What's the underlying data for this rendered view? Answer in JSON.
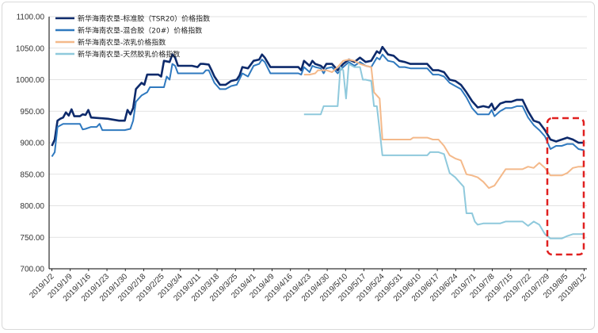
{
  "chart_data": {
    "type": "line",
    "title": "",
    "xlabel": "",
    "ylabel": "",
    "ylim": [
      700,
      1100
    ],
    "yticks": [
      "700.00",
      "750.00",
      "800.00",
      "850.00",
      "900.00",
      "950.00",
      "1000.00",
      "1050.00",
      "1100.00"
    ],
    "xticks": [
      "2019/1/2",
      "2019/1/9",
      "2019/1/16",
      "2019/1/23",
      "2019/1/30",
      "2019/2/18",
      "2019/2/25",
      "2019/3/4",
      "2019/3/11",
      "2019/3/18",
      "2019/3/25",
      "2019/4/1",
      "2019/4/9",
      "2019/4/16",
      "2019/4/23",
      "2019/4/30",
      "2019/5/10",
      "2019/5/17",
      "2019/5/24",
      "2019/5/31",
      "2019/6/10",
      "2019/6/17",
      "2019/6/24",
      "2019/7/1",
      "2019/7/8",
      "2019/7/15",
      "2019/7/22",
      "2019/7/29",
      "2019/8/5",
      "2019/8/12"
    ],
    "grid": "horizontal",
    "legend_position": "top-left",
    "annotation": "red dashed box around last trading days",
    "series": [
      {
        "name": "新华海南农垦-标准胶（TSR20）价格指数",
        "color": "#0d2a6b",
        "points": [
          [
            0,
            895
          ],
          [
            0.5,
            905
          ],
          [
            1,
            935
          ],
          [
            1.5,
            938
          ],
          [
            2,
            940
          ],
          [
            2.5,
            948
          ],
          [
            3,
            943
          ],
          [
            3.5,
            953
          ],
          [
            4,
            942
          ],
          [
            5,
            942
          ],
          [
            5.5,
            945
          ],
          [
            6,
            944
          ],
          [
            6.5,
            952
          ],
          [
            7,
            940
          ],
          [
            10,
            938
          ],
          [
            12,
            935
          ],
          [
            13,
            935
          ],
          [
            13.5,
            952
          ],
          [
            14,
            945
          ],
          [
            14.5,
            955
          ],
          [
            15,
            985
          ],
          [
            16,
            995
          ],
          [
            16.5,
            992
          ],
          [
            17,
            1008
          ],
          [
            19,
            1008
          ],
          [
            19.5,
            1005
          ],
          [
            20,
            1030
          ],
          [
            21,
            1028
          ],
          [
            21.5,
            1040
          ],
          [
            22,
            1035
          ],
          [
            22.5,
            1022
          ],
          [
            25,
            1022
          ],
          [
            26,
            1020
          ],
          [
            26.5,
            1025
          ],
          [
            27,
            1025
          ],
          [
            28,
            1024
          ],
          [
            28.5,
            1015
          ],
          [
            29,
            1005
          ],
          [
            30,
            992
          ],
          [
            31,
            992
          ],
          [
            32,
            998
          ],
          [
            33,
            1000
          ],
          [
            33.5,
            1007
          ],
          [
            34,
            1020
          ],
          [
            35,
            1018
          ],
          [
            36,
            1030
          ],
          [
            37,
            1032
          ],
          [
            37.5,
            1040
          ],
          [
            38,
            1035
          ],
          [
            39,
            1020
          ],
          [
            42,
            1020
          ],
          [
            44,
            1020
          ],
          [
            44.5,
            1015
          ],
          [
            45,
            1030
          ],
          [
            46,
            1022
          ],
          [
            46.5,
            1030
          ],
          [
            47,
            1025
          ],
          [
            48,
            1022
          ],
          [
            48.5,
            1018
          ],
          [
            49,
            1025
          ],
          [
            50,
            1025
          ],
          [
            51,
            1015
          ],
          [
            52,
            1025
          ],
          [
            53,
            1032
          ],
          [
            54,
            1028
          ],
          [
            55,
            1035
          ],
          [
            56,
            1028
          ],
          [
            57,
            1030
          ],
          [
            58,
            1045
          ],
          [
            58.5,
            1042
          ],
          [
            59,
            1052
          ],
          [
            60,
            1040
          ],
          [
            61,
            1038
          ],
          [
            62,
            1030
          ],
          [
            63,
            1028
          ],
          [
            64,
            1025
          ],
          [
            67,
            1025
          ],
          [
            68,
            1015
          ],
          [
            69,
            1015
          ],
          [
            70,
            1012
          ],
          [
            71,
            1000
          ],
          [
            72,
            998
          ],
          [
            73,
            992
          ],
          [
            74,
            980
          ],
          [
            75,
            966
          ],
          [
            76,
            956
          ],
          [
            77,
            958
          ],
          [
            78,
            956
          ],
          [
            78.5,
            962
          ],
          [
            79,
            952
          ],
          [
            80,
            962
          ],
          [
            81,
            965
          ],
          [
            82,
            965
          ],
          [
            83,
            968
          ],
          [
            84,
            968
          ],
          [
            85,
            950
          ],
          [
            86,
            935
          ],
          [
            87,
            932
          ],
          [
            88,
            920
          ],
          [
            89,
            905
          ],
          [
            90,
            902
          ],
          [
            91,
            905
          ],
          [
            92,
            908
          ],
          [
            93,
            905
          ],
          [
            94,
            900
          ],
          [
            95,
            900
          ]
        ]
      },
      {
        "name": "新华海南农垦-混合胶（20#）价格指数",
        "color": "#2f79bf",
        "points": [
          [
            0,
            878
          ],
          [
            0.5,
            885
          ],
          [
            1,
            925
          ],
          [
            2,
            930
          ],
          [
            5,
            930
          ],
          [
            5.5,
            921
          ],
          [
            6,
            922
          ],
          [
            7,
            925
          ],
          [
            8,
            925
          ],
          [
            8.5,
            930
          ],
          [
            9,
            920
          ],
          [
            13,
            920
          ],
          [
            14,
            922
          ],
          [
            14.5,
            935
          ],
          [
            15,
            965
          ],
          [
            16,
            975
          ],
          [
            17,
            980
          ],
          [
            17.5,
            988
          ],
          [
            20,
            988
          ],
          [
            20.5,
            1005
          ],
          [
            21,
            1000
          ],
          [
            21.5,
            1025
          ],
          [
            22,
            1022
          ],
          [
            22.5,
            1010
          ],
          [
            27,
            1010
          ],
          [
            27.5,
            1015
          ],
          [
            28,
            1015
          ],
          [
            28.5,
            1005
          ],
          [
            29,
            995
          ],
          [
            30,
            985
          ],
          [
            31,
            985
          ],
          [
            32,
            990
          ],
          [
            33,
            992
          ],
          [
            34,
            1010
          ],
          [
            35,
            1005
          ],
          [
            36,
            1022
          ],
          [
            37,
            1025
          ],
          [
            37.5,
            1032
          ],
          [
            38,
            1028
          ],
          [
            39,
            1010
          ],
          [
            42,
            1010
          ],
          [
            44,
            1010
          ],
          [
            44.5,
            1008
          ],
          [
            45,
            1020
          ],
          [
            46,
            1012
          ],
          [
            46.5,
            1022
          ],
          [
            47,
            1020
          ],
          [
            48,
            1018
          ],
          [
            48.5,
            1010
          ],
          [
            49,
            1018
          ],
          [
            50,
            1020
          ],
          [
            51,
            1010
          ],
          [
            52,
            1020
          ],
          [
            53,
            1028
          ],
          [
            54,
            1022
          ],
          [
            55,
            1028
          ],
          [
            56,
            1022
          ],
          [
            57,
            1020
          ],
          [
            58,
            1035
          ],
          [
            58.5,
            1032
          ],
          [
            59,
            1040
          ],
          [
            60,
            1030
          ],
          [
            61,
            1028
          ],
          [
            62,
            1020
          ],
          [
            63,
            1020
          ],
          [
            64,
            1018
          ],
          [
            67,
            1018
          ],
          [
            68,
            1008
          ],
          [
            69,
            1008
          ],
          [
            70,
            1005
          ],
          [
            71,
            995
          ],
          [
            72,
            990
          ],
          [
            73,
            985
          ],
          [
            74,
            972
          ],
          [
            75,
            955
          ],
          [
            76,
            945
          ],
          [
            77,
            945
          ],
          [
            78,
            945
          ],
          [
            78.5,
            952
          ],
          [
            79,
            942
          ],
          [
            80,
            950
          ],
          [
            81,
            955
          ],
          [
            82,
            955
          ],
          [
            83,
            958
          ],
          [
            84,
            958
          ],
          [
            85,
            940
          ],
          [
            86,
            928
          ],
          [
            87,
            920
          ],
          [
            88,
            910
          ],
          [
            89,
            890
          ],
          [
            90,
            895
          ],
          [
            91,
            895
          ],
          [
            92,
            898
          ],
          [
            93,
            898
          ],
          [
            94,
            890
          ],
          [
            95,
            888
          ]
        ]
      },
      {
        "name": "新华海南农垦-浓乳价格指数",
        "color": "#f4b98a",
        "points": [
          [
            45,
            1008
          ],
          [
            46,
            1008
          ],
          [
            47,
            1010
          ],
          [
            47.5,
            1015
          ],
          [
            49,
            1015
          ],
          [
            50,
            1012
          ],
          [
            51,
            1020
          ],
          [
            52,
            1030
          ],
          [
            53,
            1032
          ],
          [
            54,
            1030
          ],
          [
            55,
            1025
          ],
          [
            56,
            1022
          ],
          [
            57,
            1020
          ],
          [
            57.5,
            980
          ],
          [
            58,
            975
          ],
          [
            58.5,
            970
          ],
          [
            59,
            905
          ],
          [
            63,
            905
          ],
          [
            64,
            905
          ],
          [
            64.5,
            908
          ],
          [
            67,
            908
          ],
          [
            68,
            905
          ],
          [
            69,
            905
          ],
          [
            70,
            895
          ],
          [
            71,
            880
          ],
          [
            72,
            875
          ],
          [
            73,
            872
          ],
          [
            74,
            850
          ],
          [
            75,
            848
          ],
          [
            76,
            845
          ],
          [
            77,
            838
          ],
          [
            78,
            828
          ],
          [
            79,
            832
          ],
          [
            80,
            845
          ],
          [
            81,
            858
          ],
          [
            84,
            858
          ],
          [
            85,
            862
          ],
          [
            86,
            860
          ],
          [
            87,
            868
          ],
          [
            88,
            860
          ],
          [
            89,
            848
          ],
          [
            90,
            848
          ],
          [
            91,
            848
          ],
          [
            92,
            852
          ],
          [
            93,
            860
          ],
          [
            94,
            862
          ],
          [
            95,
            862
          ]
        ]
      },
      {
        "name": "新华海南农垦-天然胶乳价格指数",
        "color": "#8fc9dc",
        "points": [
          [
            45,
            945
          ],
          [
            47,
            945
          ],
          [
            48,
            945
          ],
          [
            48.5,
            958
          ],
          [
            50,
            958
          ],
          [
            51,
            958
          ],
          [
            51.5,
            1020
          ],
          [
            52,
            1015
          ],
          [
            52.5,
            970
          ],
          [
            53,
            1025
          ],
          [
            54,
            1020
          ],
          [
            55,
            1020
          ],
          [
            55.5,
            1000
          ],
          [
            56,
            1000
          ],
          [
            57,
            998
          ],
          [
            57.5,
            958
          ],
          [
            58,
            958
          ],
          [
            58.5,
            920
          ],
          [
            59,
            880
          ],
          [
            63,
            880
          ],
          [
            66,
            880
          ],
          [
            67,
            880
          ],
          [
            67.5,
            885
          ],
          [
            69,
            885
          ],
          [
            70,
            882
          ],
          [
            71,
            852
          ],
          [
            72,
            845
          ],
          [
            72.5,
            840
          ],
          [
            73,
            835
          ],
          [
            73.5,
            830
          ],
          [
            74,
            788
          ],
          [
            75,
            788
          ],
          [
            75.5,
            775
          ],
          [
            76,
            770
          ],
          [
            77,
            772
          ],
          [
            79,
            772
          ],
          [
            80,
            772
          ],
          [
            81,
            775
          ],
          [
            84,
            775
          ],
          [
            85,
            768
          ],
          [
            86,
            775
          ],
          [
            87,
            770
          ],
          [
            88,
            755
          ],
          [
            89,
            748
          ],
          [
            90,
            748
          ],
          [
            91,
            748
          ],
          [
            92,
            752
          ],
          [
            93,
            755
          ],
          [
            94,
            755
          ],
          [
            95,
            755
          ]
        ]
      }
    ]
  }
}
